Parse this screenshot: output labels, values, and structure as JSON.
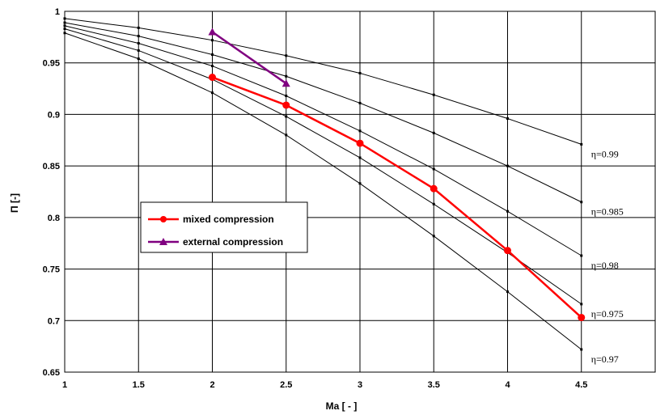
{
  "chart_data": {
    "type": "line",
    "xlabel": "Ma [ - ]",
    "ylabel": "Π [-]",
    "xlim": [
      1,
      5
    ],
    "ylim": [
      0.65,
      1
    ],
    "grid": true,
    "x_ticks": [
      "1",
      "1.5",
      "2",
      "2.5",
      "3",
      "3.5",
      "4",
      "4.5"
    ],
    "y_ticks": [
      "0.65",
      "0.7",
      "0.75",
      "0.8",
      "0.85",
      "0.9",
      "0.95",
      "1"
    ],
    "legend_position": "center-left",
    "efficiency_curves": [
      {
        "label": "η=0.99",
        "x": [
          1,
          1.5,
          2,
          2.5,
          3,
          3.5,
          4,
          4.5
        ],
        "y": [
          0.993,
          0.984,
          0.972,
          0.957,
          0.94,
          0.919,
          0.896,
          0.871
        ]
      },
      {
        "label": "η=0.985",
        "x": [
          1,
          1.5,
          2,
          2.5,
          3,
          3.5,
          4,
          4.5
        ],
        "y": [
          0.989,
          0.976,
          0.958,
          0.937,
          0.911,
          0.882,
          0.85,
          0.815
        ]
      },
      {
        "label": "η=0.98",
        "x": [
          1,
          1.5,
          2,
          2.5,
          3,
          3.5,
          4,
          4.5
        ],
        "y": [
          0.986,
          0.969,
          0.947,
          0.918,
          0.884,
          0.847,
          0.806,
          0.763
        ]
      },
      {
        "label": "η=0.975",
        "x": [
          1,
          1.5,
          2,
          2.5,
          3,
          3.5,
          4,
          4.5
        ],
        "y": [
          0.983,
          0.962,
          0.934,
          0.898,
          0.858,
          0.813,
          0.766,
          0.716
        ]
      },
      {
        "label": "η=0.97",
        "x": [
          1,
          1.5,
          2,
          2.5,
          3,
          3.5,
          4,
          4.5
        ],
        "y": [
          0.979,
          0.954,
          0.921,
          0.88,
          0.833,
          0.782,
          0.728,
          0.672
        ]
      }
    ],
    "series": [
      {
        "name": "mixed compression",
        "color": "#ff0000",
        "marker": "circle",
        "x": [
          2,
          2.5,
          3,
          3.5,
          4,
          4.5
        ],
        "y": [
          0.936,
          0.909,
          0.872,
          0.828,
          0.768,
          0.703
        ]
      },
      {
        "name": "external compression",
        "color": "#800080",
        "marker": "triangle",
        "x": [
          2,
          2.5
        ],
        "y": [
          0.98,
          0.93
        ]
      }
    ]
  }
}
